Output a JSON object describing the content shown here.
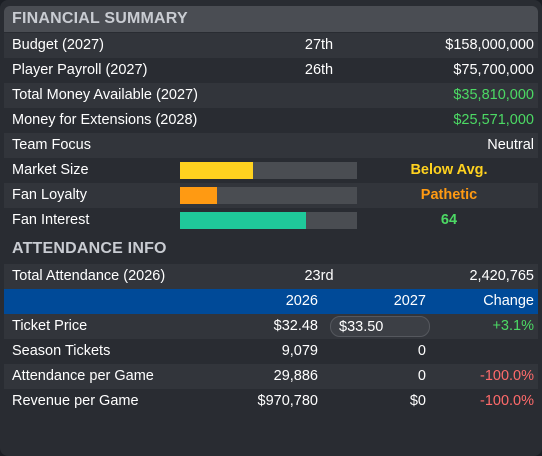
{
  "financial_summary": {
    "title": "FINANCIAL SUMMARY",
    "rows": [
      {
        "label": "Budget (2027)",
        "rank": "27th",
        "value": "$158,000,000"
      },
      {
        "label": "Player Payroll (2027)",
        "rank": "26th",
        "value": "$75,700,000"
      },
      {
        "label": "Total Money Available (2027)",
        "rank": "",
        "value": "$35,810,000",
        "value_color": "#4cd964"
      },
      {
        "label": "Money for Extensions (2028)",
        "rank": "",
        "value": "$25,571,000",
        "value_color": "#4cd964"
      },
      {
        "label": "Team Focus",
        "rank": "",
        "value": "Neutral"
      }
    ],
    "bars": [
      {
        "label": "Market Size",
        "fill_fraction": 0.41,
        "color": "#ffd21f",
        "text": "Below Avg."
      },
      {
        "label": "Fan Loyalty",
        "fill_fraction": 0.21,
        "color": "#ff9a12",
        "text": "Pathetic"
      },
      {
        "label": "Fan Interest",
        "fill_fraction": 0.71,
        "color": "#1fc99a",
        "text": "64"
      }
    ]
  },
  "attendance_info": {
    "title": "ATTENDANCE INFO",
    "total": {
      "label": "Total Attendance (2026)",
      "rank": "23rd",
      "value": "2,420,765"
    },
    "table": {
      "headers": {
        "y2026": "2026",
        "y2027": "2027",
        "change": "Change"
      },
      "rows": [
        {
          "label": "Ticket Price",
          "y2026": "$32.48",
          "y2027": "$33.50",
          "change": "+3.1%"
        },
        {
          "label": "Season Tickets",
          "y2026": "9,079",
          "y2027": "0",
          "change": ""
        },
        {
          "label": "Attendance per Game",
          "y2026": "29,886",
          "y2027": "0",
          "change": "-100.0%"
        },
        {
          "label": "Revenue per Game",
          "y2026": "$970,780",
          "y2027": "$0",
          "change": "-100.0%"
        }
      ]
    }
  },
  "colors": {
    "positive": "#4cd964",
    "negative": "#ff6b6b",
    "table_header": "#004a98",
    "panel": "#292c32"
  }
}
